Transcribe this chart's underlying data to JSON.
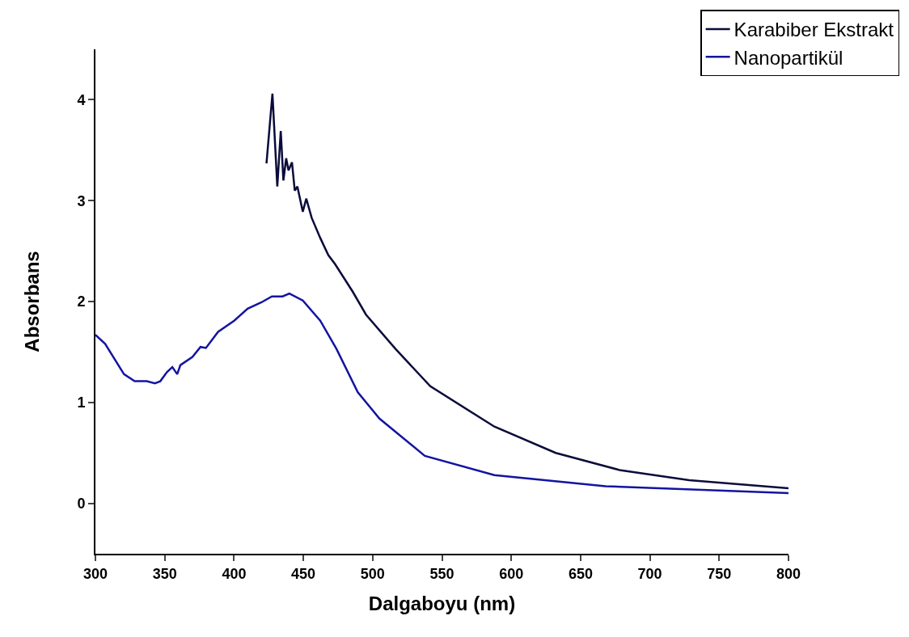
{
  "chart_data": {
    "type": "line",
    "xlabel": "Dalgaboyu (nm)",
    "ylabel": "Absorbans",
    "xlim": [
      300,
      800
    ],
    "xticks": [
      300,
      350,
      400,
      450,
      500,
      550,
      600,
      650,
      700,
      750,
      800
    ],
    "ylim": [
      -0.5,
      4.5
    ],
    "yticks": [
      0,
      1,
      2,
      3,
      4
    ],
    "grid": false,
    "legend": "top right",
    "marker": "none",
    "line_style": "solid",
    "series": [
      {
        "name": "Karabiber Ekstrakt",
        "color": "#0b0b3b",
        "x": [
          423.4,
          427.7,
          431.2,
          433.7,
          435.6,
          437.6,
          439.3,
          441.8,
          443.8,
          445.7,
          449.6,
          452.1,
          456,
          462.2,
          468,
          472.9,
          485.5,
          495.2,
          516.5,
          541.6,
          587.8,
          632,
          678.1,
          728.3,
          800
        ],
        "values": [
          3.37,
          4.06,
          3.14,
          3.69,
          3.2,
          3.42,
          3.3,
          3.38,
          3.1,
          3.14,
          2.89,
          3.02,
          2.83,
          2.63,
          2.46,
          2.37,
          2.1,
          1.87,
          1.53,
          1.16,
          0.76,
          0.5,
          0.33,
          0.23,
          0.15
        ]
      },
      {
        "name": "Nanopartikül",
        "color": "#1414a0",
        "x": [
          300,
          307,
          320.6,
          328.3,
          337,
          342.9,
          346.8,
          351.6,
          355.5,
          359,
          361.3,
          370,
          375.8,
          379.7,
          388.5,
          400.1,
          409.8,
          419.5,
          427.3,
          435,
          439.9,
          449.6,
          462.2,
          473.9,
          489.3,
          504.9,
          537.6,
          587.8,
          668,
          800
        ],
        "values": [
          1.67,
          1.58,
          1.28,
          1.21,
          1.21,
          1.19,
          1.21,
          1.3,
          1.35,
          1.28,
          1.37,
          1.45,
          1.55,
          1.54,
          1.7,
          1.81,
          1.93,
          1.99,
          2.05,
          2.05,
          2.08,
          2.01,
          1.81,
          1.53,
          1.1,
          0.84,
          0.47,
          0.28,
          0.17,
          0.1
        ]
      }
    ]
  }
}
